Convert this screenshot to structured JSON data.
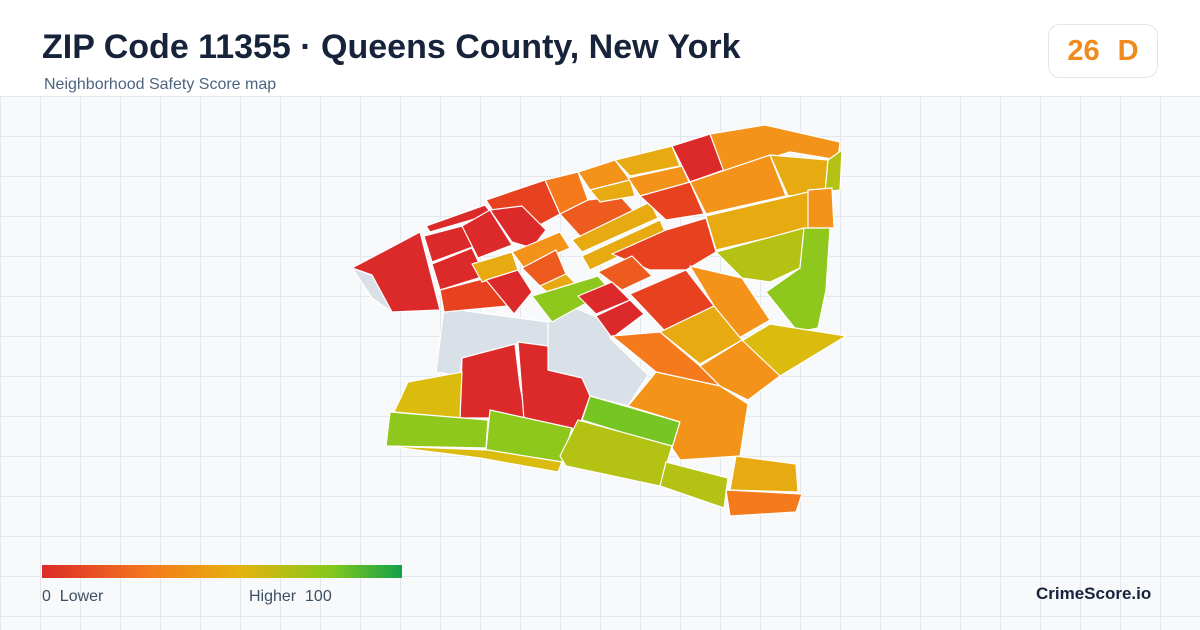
{
  "header": {
    "title": "ZIP Code 11355 · Queens County, New York",
    "subtitle": "Neighborhood Safety Score map"
  },
  "score": {
    "value": "26",
    "grade": "D",
    "color": "#f08a1c"
  },
  "legend": {
    "min_label": "0  Lower",
    "max_label": "Higher  100",
    "gradient_colors": [
      "#dc2a2a",
      "#f47a1c",
      "#e6b20e",
      "#86c81c",
      "#14a04a"
    ]
  },
  "brand": "CrimeScore.io",
  "map": {
    "no_data_color": "#d9e0e7",
    "tract_colors": {
      "red": "#dc2a2a",
      "red_orange": "#e7411f",
      "orange_red": "#ee5b1f",
      "orange": "#f47a1c",
      "amber": "#f3931a",
      "gold": "#e7aa11",
      "yellow": "#dbbc0e",
      "olive": "#b4c214",
      "yellow_green": "#8fc81c",
      "green": "#75c623"
    }
  }
}
